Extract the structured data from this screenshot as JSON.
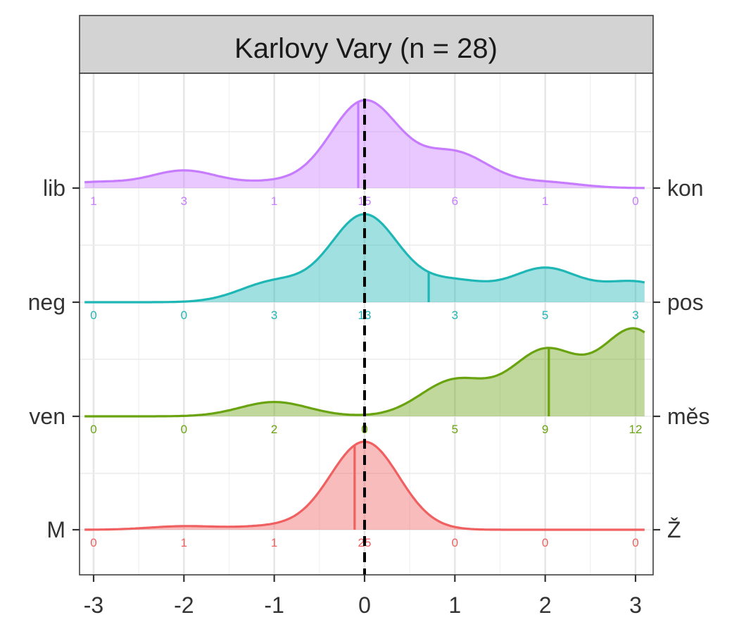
{
  "chart_data": {
    "type": "ridgeline-density",
    "title": "Karlovy Vary (n = 28)",
    "xlim": [
      -3,
      3
    ],
    "x_ticks": [
      -3,
      -2,
      -1,
      0,
      1,
      2,
      3
    ],
    "x_tick_labels": [
      "-3",
      "-2",
      "-1",
      "0",
      "1",
      "2",
      "3"
    ],
    "reference_line_x": 0,
    "grid": true,
    "count_positions": [
      -3,
      -2,
      -1,
      0,
      1,
      2,
      3
    ],
    "series": [
      {
        "left_label": "lib",
        "right_label": "kon",
        "color": "#c77cff",
        "mean": -0.07,
        "counts": [
          1,
          3,
          1,
          15,
          6,
          1,
          0
        ],
        "counts_text": [
          "1",
          "3",
          "1",
          "15",
          "6",
          "1",
          "0"
        ]
      },
      {
        "left_label": "neg",
        "right_label": "pos",
        "color": "#1fb6b6",
        "mean": 0.71,
        "counts": [
          0,
          0,
          3,
          13,
          3,
          5,
          3
        ],
        "counts_text": [
          "0",
          "0",
          "3",
          "13",
          "3",
          "5",
          "3"
        ]
      },
      {
        "left_label": "ven",
        "right_label": "měs",
        "color": "#6aa310",
        "mean": 2.04,
        "counts": [
          0,
          0,
          2,
          0,
          5,
          9,
          12
        ],
        "counts_text": [
          "0",
          "0",
          "2",
          "0",
          "5",
          "9",
          "12"
        ]
      },
      {
        "left_label": "M",
        "right_label": "Ž",
        "color": "#f06060",
        "mean": -0.11,
        "counts": [
          0,
          1,
          1,
          25,
          0,
          0,
          0
        ],
        "counts_text": [
          "0",
          "1",
          "1",
          "25",
          "0",
          "0",
          "0"
        ]
      }
    ]
  }
}
